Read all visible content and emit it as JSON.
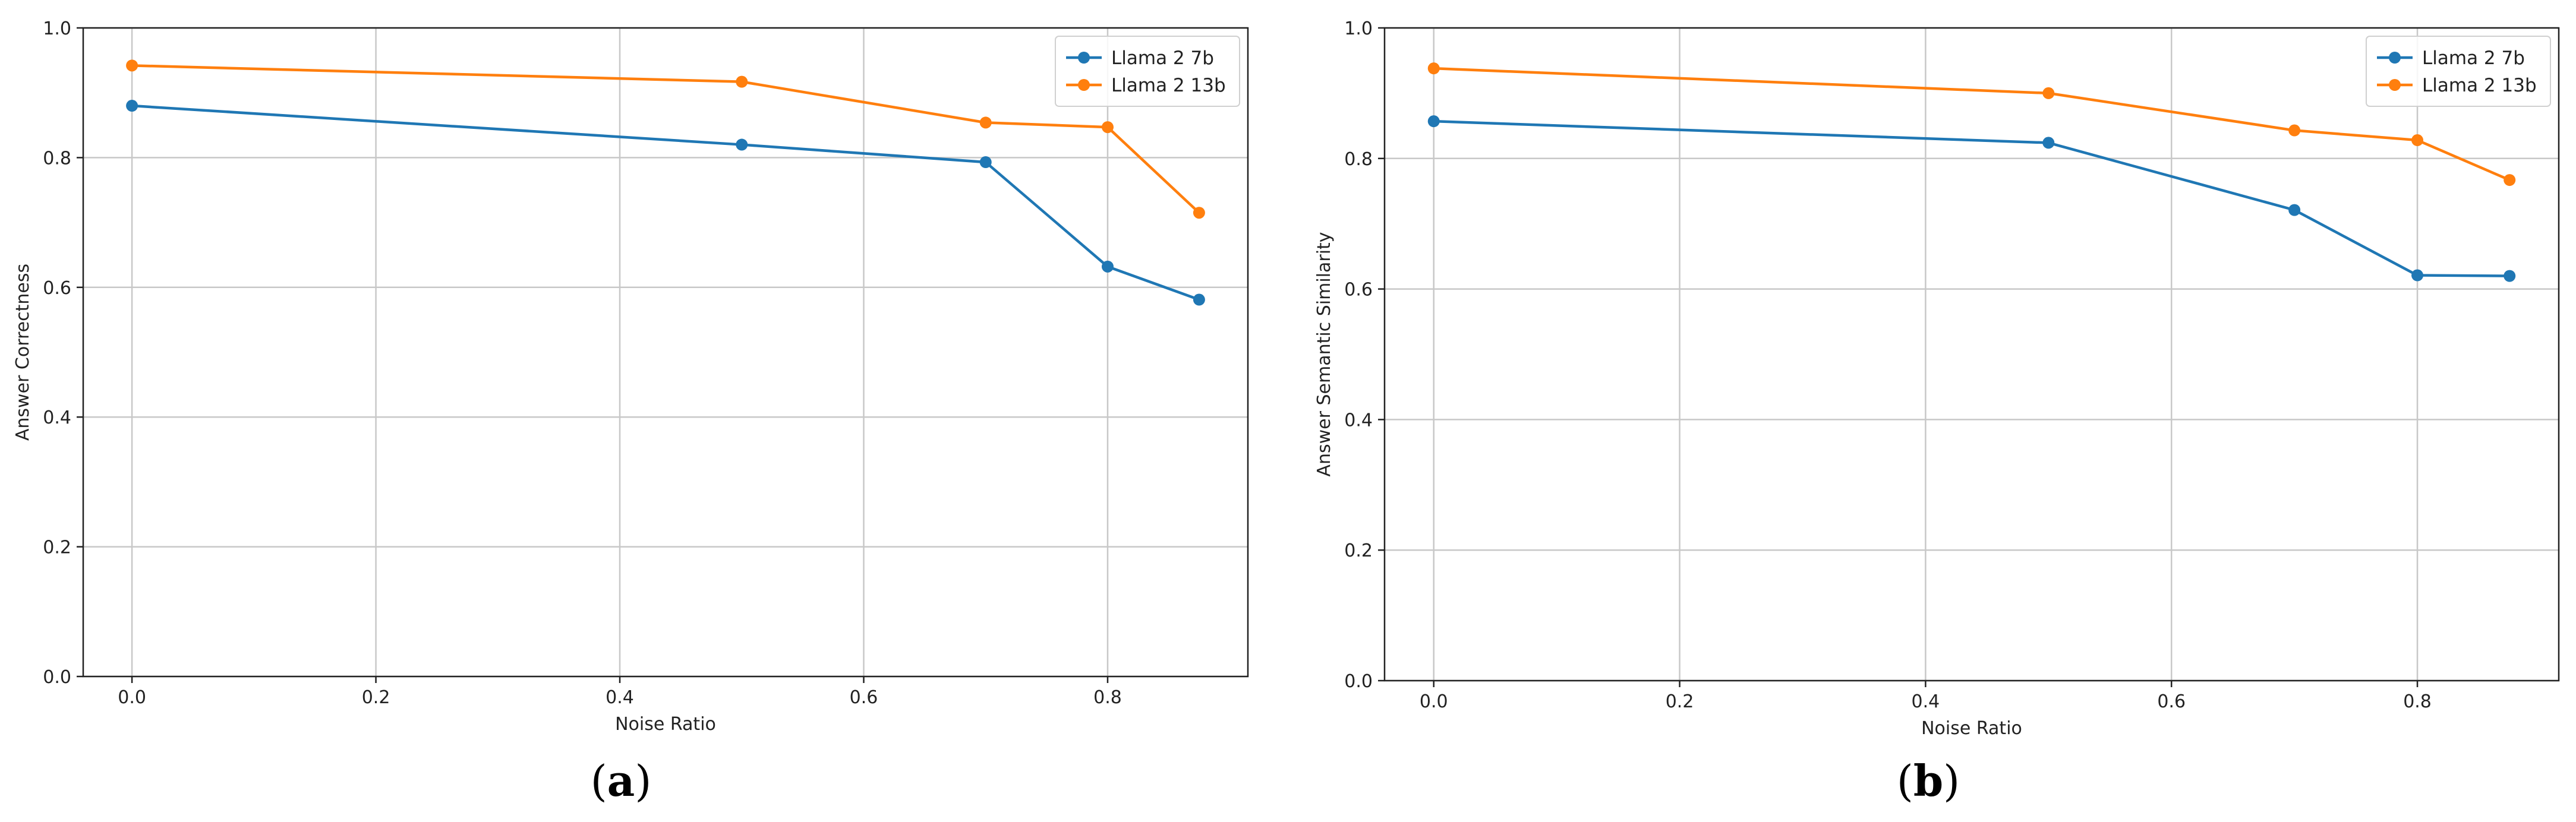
{
  "colors": {
    "series_7b": "#1f77b4",
    "series_13b": "#ff7f0e",
    "grid": "#c8c8c8",
    "axis": "#222222"
  },
  "chart_data": [
    {
      "type": "line",
      "panel": "a",
      "caption": {
        "open": "(",
        "letter": "a",
        "close": ")"
      },
      "xlabel": "Noise Ratio",
      "ylabel": "Answer Correctness",
      "xlim": [
        -0.04,
        0.915
      ],
      "ylim": [
        0.0,
        1.0
      ],
      "xticks": [
        0.0,
        0.2,
        0.4,
        0.6,
        0.8
      ],
      "yticks": [
        0.0,
        0.2,
        0.4,
        0.6,
        0.8,
        1.0
      ],
      "xtick_labels": [
        "0.0",
        "0.2",
        "0.4",
        "0.6",
        "0.8"
      ],
      "ytick_labels": [
        "0.0",
        "0.2",
        "0.4",
        "0.6",
        "0.8",
        "1.0"
      ],
      "grid": true,
      "legend": "top-right",
      "series": [
        {
          "name": "Llama 2 7b",
          "color": "#1f77b4",
          "x": [
            0.0,
            0.5,
            0.7,
            0.8,
            0.875
          ],
          "y": [
            0.88,
            0.82,
            0.793,
            0.632,
            0.581
          ]
        },
        {
          "name": "Llama 2 13b",
          "color": "#ff7f0e",
          "x": [
            0.0,
            0.5,
            0.7,
            0.8,
            0.875
          ],
          "y": [
            0.942,
            0.917,
            0.854,
            0.847,
            0.715
          ]
        }
      ]
    },
    {
      "type": "line",
      "panel": "b",
      "caption": {
        "open": "(",
        "letter": "b",
        "close": ")"
      },
      "xlabel": "Noise Ratio",
      "ylabel": "Answer Semantic Similarity",
      "xlim": [
        -0.04,
        0.915
      ],
      "ylim": [
        0.0,
        1.0
      ],
      "xticks": [
        0.0,
        0.2,
        0.4,
        0.6,
        0.8
      ],
      "yticks": [
        0.0,
        0.2,
        0.4,
        0.6,
        0.8,
        1.0
      ],
      "xtick_labels": [
        "0.0",
        "0.2",
        "0.4",
        "0.6",
        "0.8"
      ],
      "ytick_labels": [
        "0.0",
        "0.2",
        "0.4",
        "0.6",
        "0.8",
        "1.0"
      ],
      "grid": true,
      "legend": "top-right",
      "series": [
        {
          "name": "Llama 2 7b",
          "color": "#1f77b4",
          "x": [
            0.0,
            0.5,
            0.7,
            0.8,
            0.875
          ],
          "y": [
            0.857,
            0.824,
            0.721,
            0.621,
            0.62
          ]
        },
        {
          "name": "Llama 2 13b",
          "color": "#ff7f0e",
          "x": [
            0.0,
            0.5,
            0.7,
            0.8,
            0.875
          ],
          "y": [
            0.938,
            0.9,
            0.843,
            0.828,
            0.767
          ]
        }
      ]
    }
  ]
}
